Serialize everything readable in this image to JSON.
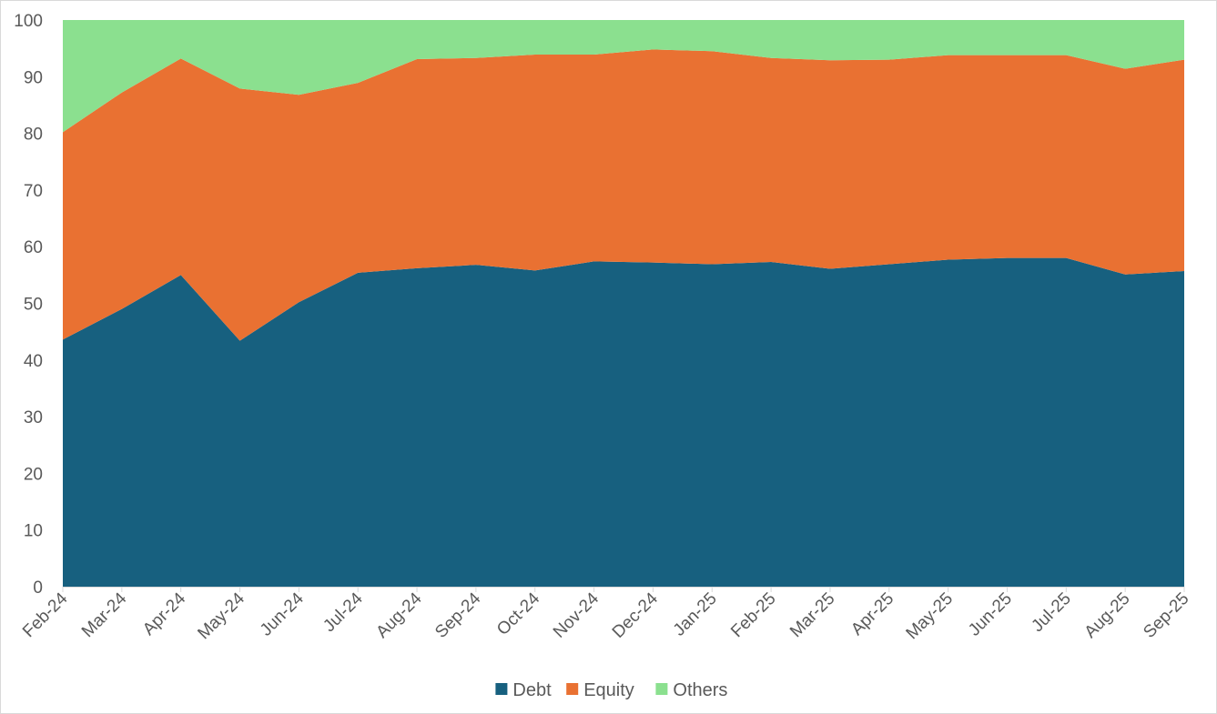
{
  "chart_data": {
    "type": "area",
    "stacked": true,
    "title": "",
    "xlabel": "",
    "ylabel": "",
    "ylim": [
      0,
      100
    ],
    "yticks": [
      0,
      10,
      20,
      30,
      40,
      50,
      60,
      70,
      80,
      90,
      100
    ],
    "grid": false,
    "legend_position": "bottom",
    "categories": [
      "Feb-24",
      "Mar-24",
      "Apr-24",
      "May-24",
      "Jun-24",
      "Jul-24",
      "Aug-24",
      "Sep-24",
      "Oct-24",
      "Nov-24",
      "Dec-24",
      "Jan-25",
      "Feb-25",
      "Mar-25",
      "Apr-25",
      "May-25",
      "Jun-25",
      "Jul-25",
      "Aug-25",
      "Sep-25"
    ],
    "series": [
      {
        "name": "Debt",
        "color": "#17607f",
        "values": [
          43.6,
          49.0,
          55.0,
          43.4,
          50.2,
          55.4,
          56.2,
          56.8,
          55.8,
          57.4,
          57.2,
          56.9,
          57.3,
          56.1,
          56.9,
          57.7,
          58.0,
          58.0,
          55.1,
          55.7
        ]
      },
      {
        "name": "Equity",
        "color": "#e97132",
        "values": [
          36.6,
          38.2,
          38.2,
          44.5,
          36.6,
          33.5,
          36.9,
          36.5,
          38.1,
          36.5,
          37.6,
          37.6,
          36.0,
          36.8,
          36.1,
          36.1,
          35.8,
          35.8,
          36.3,
          37.3
        ]
      },
      {
        "name": "Others",
        "color": "#8be08f",
        "values": [
          19.8,
          12.8,
          6.8,
          12.1,
          13.2,
          11.1,
          6.9,
          6.7,
          6.1,
          6.1,
          5.2,
          5.5,
          6.7,
          7.1,
          7.0,
          6.2,
          6.2,
          6.2,
          8.6,
          7.0
        ]
      }
    ]
  }
}
